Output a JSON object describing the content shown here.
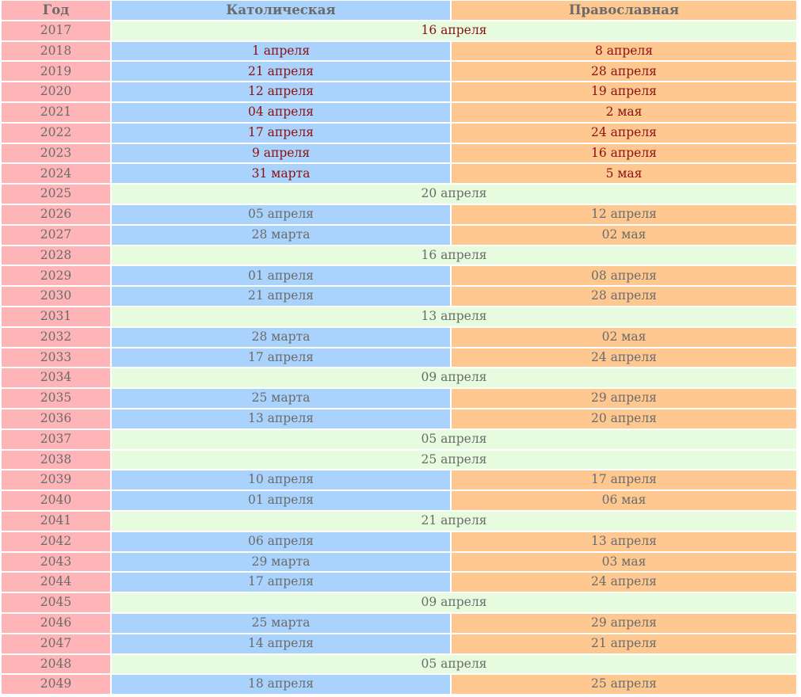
{
  "colors": {
    "year_column": "#ffb4b8",
    "catholic_column": "#a9d2fc",
    "orthodox_column": "#ffc891",
    "same_date_row": "#e7fbde",
    "header_text": "#6b6b6b",
    "past_years_text": "#8b1010",
    "future_years_text": "#6b6b6b"
  },
  "header": {
    "year": "Год",
    "catholic": "Католическая",
    "orthodox": "Православная"
  },
  "rows": [
    {
      "year": "2017",
      "same": "16 апреля"
    },
    {
      "year": "2018",
      "catholic": "1 апреля",
      "orthodox": "8 апреля"
    },
    {
      "year": "2019",
      "catholic": "21 апреля",
      "orthodox": "28 апреля"
    },
    {
      "year": "2020",
      "catholic": "12 апреля",
      "orthodox": "19 апреля"
    },
    {
      "year": "2021",
      "catholic": "04 апреля",
      "orthodox": "2 мая"
    },
    {
      "year": "2022",
      "catholic": "17 апреля",
      "orthodox": "24 апреля"
    },
    {
      "year": "2023",
      "catholic": "9 апреля",
      "orthodox": "16 апреля"
    },
    {
      "year": "2024",
      "catholic": "31 марта",
      "orthodox": "5 мая"
    },
    {
      "year": "2025",
      "same": "20 апреля"
    },
    {
      "year": "2026",
      "catholic": "05 апреля",
      "orthodox": "12 апреля"
    },
    {
      "year": "2027",
      "catholic": "28 марта",
      "orthodox": "02 мая"
    },
    {
      "year": "2028",
      "same": "16 апреля"
    },
    {
      "year": "2029",
      "catholic": "01 апреля",
      "orthodox": "08 апреля"
    },
    {
      "year": "2030",
      "catholic": "21 апреля",
      "orthodox": "28 апреля"
    },
    {
      "year": "2031",
      "same": "13 апреля"
    },
    {
      "year": "2032",
      "catholic": "28 марта",
      "orthodox": "02 мая"
    },
    {
      "year": "2033",
      "catholic": "17 апреля",
      "orthodox": "24 апреля"
    },
    {
      "year": "2034",
      "same": "09 апреля"
    },
    {
      "year": "2035",
      "catholic": "25 марта",
      "orthodox": "29 апреля"
    },
    {
      "year": "2036",
      "catholic": "13 апреля",
      "orthodox": "20 апреля"
    },
    {
      "year": "2037",
      "same": "05 апреля"
    },
    {
      "year": "2038",
      "same": "25 апреля"
    },
    {
      "year": "2039",
      "catholic": "10 апреля",
      "orthodox": "17 апреля"
    },
    {
      "year": "2040",
      "catholic": "01 апреля",
      "orthodox": "06 мая"
    },
    {
      "year": "2041",
      "same": "21 апреля"
    },
    {
      "year": "2042",
      "catholic": "06 апреля",
      "orthodox": "13 апреля"
    },
    {
      "year": "2043",
      "catholic": "29 марта",
      "orthodox": "03 мая"
    },
    {
      "year": "2044",
      "catholic": "17 апреля",
      "orthodox": "24 апреля"
    },
    {
      "year": "2045",
      "same": "09 апреля"
    },
    {
      "year": "2046",
      "catholic": "25 марта",
      "orthodox": "29 апреля"
    },
    {
      "year": "2047",
      "catholic": "14 апреля",
      "orthodox": "21 апреля"
    },
    {
      "year": "2048",
      "same": "05 апреля"
    },
    {
      "year": "2049",
      "catholic": "18 апреля",
      "orthodox": "25 апреля"
    }
  ]
}
